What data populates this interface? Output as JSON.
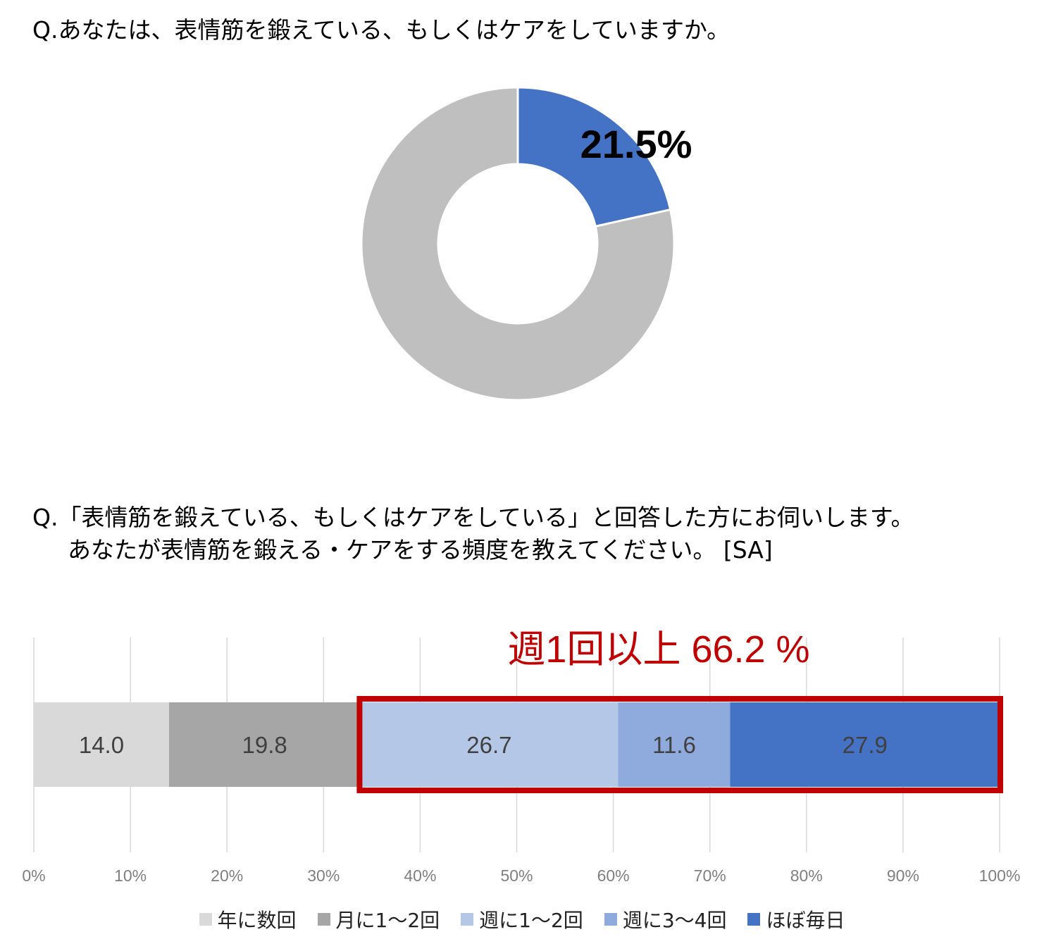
{
  "question1": "Q.あなたは、表情筋を鍛えている、もしくはケアをしていますか。",
  "question2": {
    "line1": "Q.「表情筋を鍛えている、もしくはケアをしている」と回答した方にお伺いします。",
    "line2": "あなたが表情筋を鍛える・ケアをする頻度を教えてください。 [SA]"
  },
  "highlight_label": "週1回以上 66.2 %",
  "colors": {
    "donut_highlight": "#4472C4",
    "donut_rest": "#BFBFBF",
    "highlight_border": "#C00000",
    "highlight_text": "#C00000"
  },
  "chart_data": [
    {
      "type": "pie",
      "style": "donut",
      "values": [
        21.5,
        78.5
      ],
      "colors": [
        "#4472C4",
        "#BFBFBF"
      ],
      "data_label": "21.5%"
    },
    {
      "type": "bar",
      "orientation": "horizontal",
      "stacked": true,
      "xlim": [
        0,
        100
      ],
      "ticks": [
        "0%",
        "10%",
        "20%",
        "30%",
        "40%",
        "50%",
        "60%",
        "70%",
        "80%",
        "90%",
        "100%"
      ],
      "grid": true,
      "legend_position": "bottom",
      "series": [
        {
          "name": "年に数回",
          "values": [
            14.0
          ],
          "label": "14.0",
          "color": "#D9D9D9"
        },
        {
          "name": "月に1～2回",
          "values": [
            19.8
          ],
          "label": "19.8",
          "color": "#A6A6A6"
        },
        {
          "name": "週に1～2回",
          "values": [
            26.7
          ],
          "label": "26.7",
          "color": "#B4C7E7"
        },
        {
          "name": "週に3～4回",
          "values": [
            11.6
          ],
          "label": "11.6",
          "color": "#8FAADC"
        },
        {
          "name": "ほぼ毎日",
          "values": [
            27.9
          ],
          "label": "27.9",
          "color": "#4472C4"
        }
      ],
      "highlight_range": [
        33.8,
        100
      ]
    }
  ]
}
